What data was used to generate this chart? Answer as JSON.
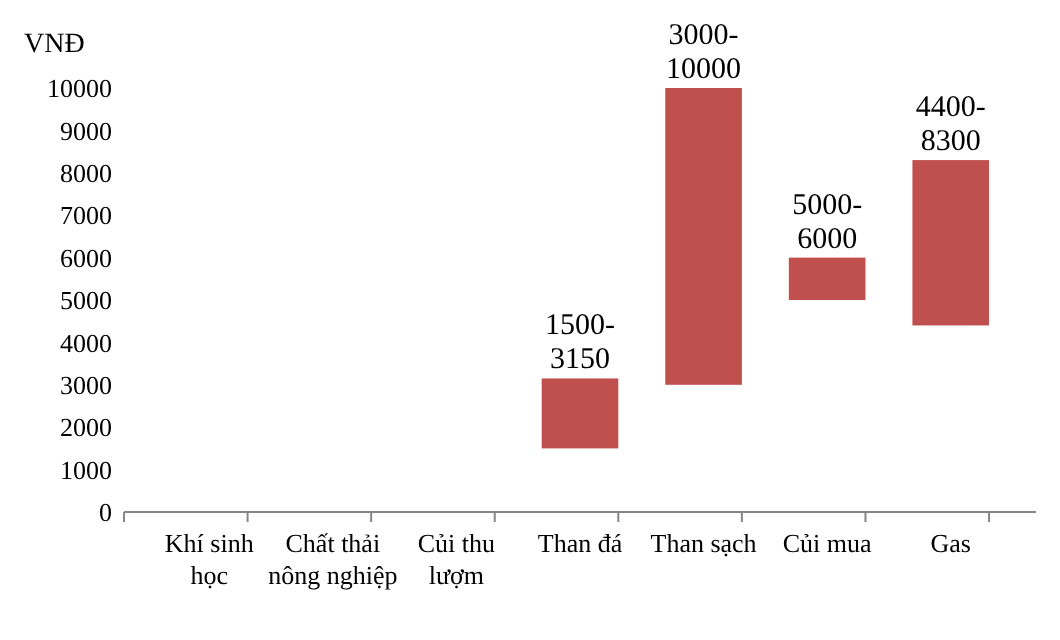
{
  "chart_data": {
    "type": "bar",
    "ylabel": "VNĐ",
    "categories": [
      "Khí sinh học",
      "Chất thải nông nghiệp",
      "Củi thu lượm",
      "Than đá",
      "Than sạch",
      "Củi mua",
      "Gas"
    ],
    "base": [
      null,
      null,
      null,
      1500,
      3000,
      5000,
      4400
    ],
    "values": [
      null,
      null,
      null,
      1650,
      7000,
      1000,
      3900
    ],
    "value_labels": [
      null,
      null,
      null,
      "1500-3150",
      "3000-10000",
      "5000-6000",
      "4400-8300"
    ],
    "color": "#c0504d",
    "ylim": [
      0,
      10000
    ],
    "yticks": [
      0,
      1000,
      2000,
      3000,
      4000,
      5000,
      6000,
      7000,
      8000,
      9000,
      10000
    ],
    "grid": false
  }
}
